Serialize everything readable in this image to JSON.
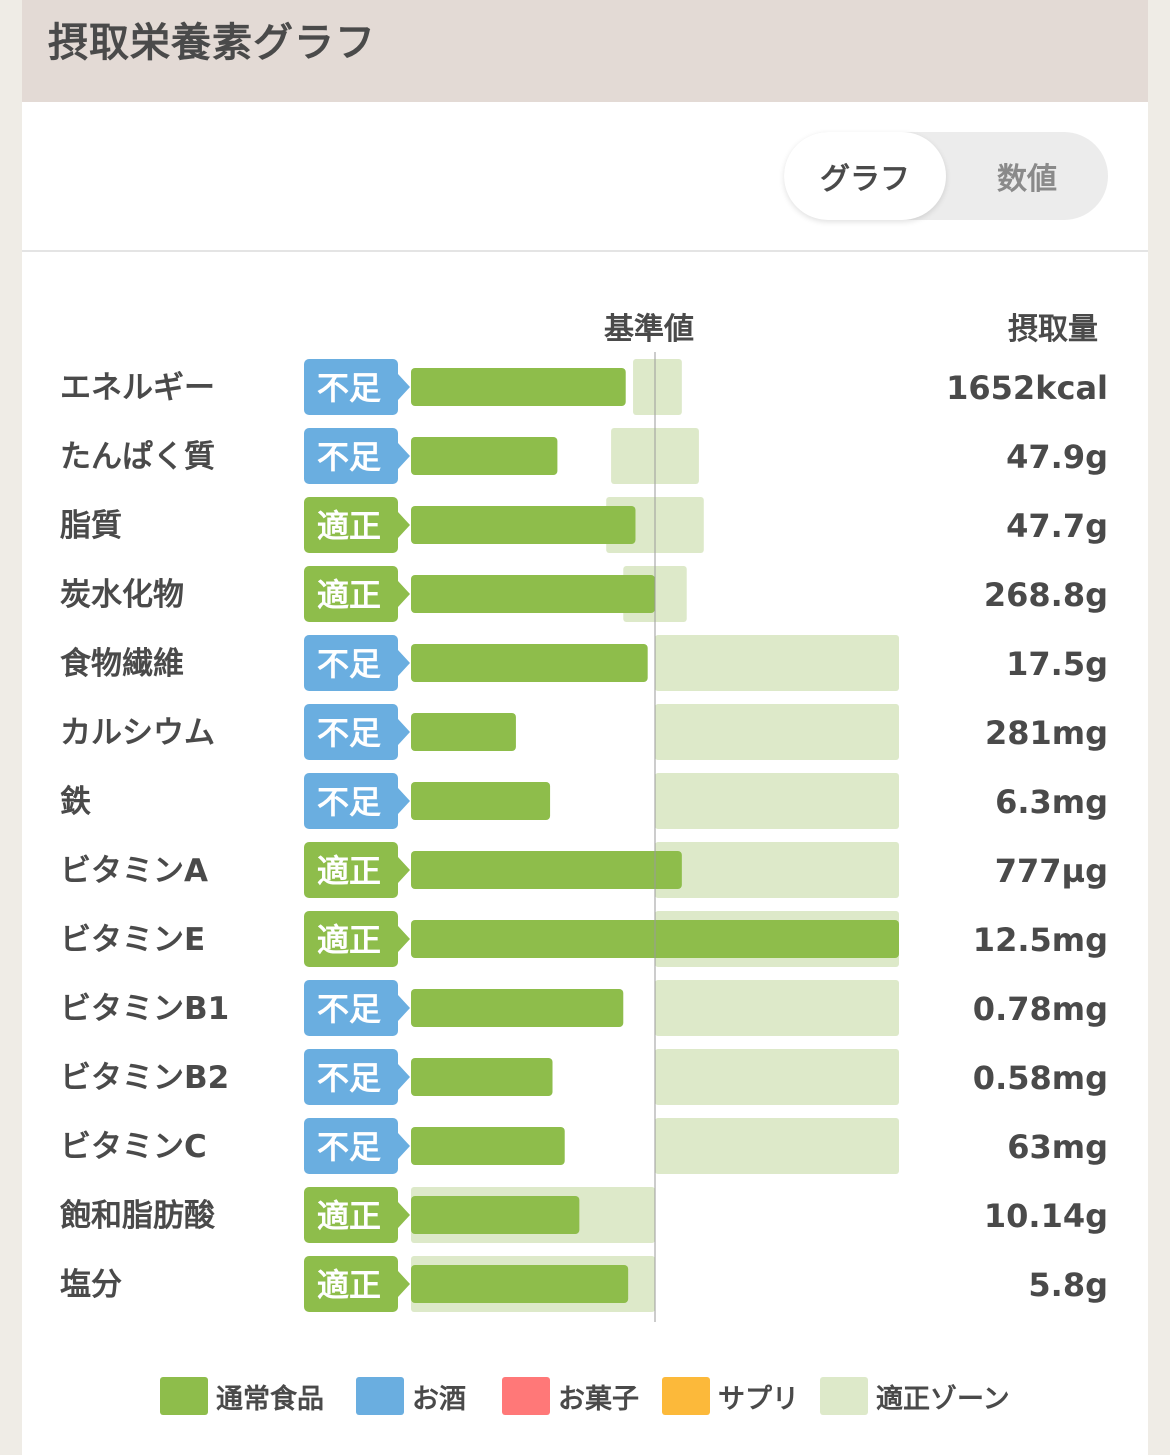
{
  "header": {
    "title": "摂取栄養素グラフ"
  },
  "toggle": {
    "graph_label": "グラフ",
    "number_label": "数値",
    "selected": "graph"
  },
  "columns": {
    "baseline": "基準値",
    "intake": "摂取量"
  },
  "colors": {
    "normal_food": "#8ebd4b",
    "alcohol": "#6aaee0",
    "snack": "#ff7878",
    "supplement": "#fcb93a",
    "proper_zone": "#dde9c9",
    "status_low": "#6aaee0",
    "status_ok": "#8ebd4b",
    "baseline_line": "#9a9a9a"
  },
  "chart_data": {
    "type": "bar",
    "value_unit": "percent_of_baseline",
    "baseline_percent": 100,
    "rows": [
      {
        "name": "エネルギー",
        "status": "不足",
        "percent": 88,
        "zone": [
          91,
          111
        ],
        "intake": "1652kcal"
      },
      {
        "name": "たんぱく質",
        "status": "不足",
        "percent": 60,
        "zone": [
          82,
          118
        ],
        "intake": "47.9g"
      },
      {
        "name": "脂質",
        "status": "適正",
        "percent": 92,
        "zone": [
          80,
          120
        ],
        "intake": "47.7g"
      },
      {
        "name": "炭水化物",
        "status": "適正",
        "percent": 100,
        "zone": [
          87,
          113
        ],
        "intake": "268.8g"
      },
      {
        "name": "食物繊維",
        "status": "不足",
        "percent": 97,
        "zone": [
          100,
          200
        ],
        "intake": "17.5g"
      },
      {
        "name": "カルシウム",
        "status": "不足",
        "percent": 43,
        "zone": [
          100,
          200
        ],
        "intake": "281mg"
      },
      {
        "name": "鉄",
        "status": "不足",
        "percent": 57,
        "zone": [
          100,
          200
        ],
        "intake": "6.3mg"
      },
      {
        "name": "ビタミンA",
        "status": "適正",
        "percent": 111,
        "zone": [
          100,
          200
        ],
        "intake": "777µg"
      },
      {
        "name": "ビタミンE",
        "status": "適正",
        "percent": 200,
        "zone": [
          100,
          200
        ],
        "intake": "12.5mg"
      },
      {
        "name": "ビタミンB1",
        "status": "不足",
        "percent": 87,
        "zone": [
          100,
          200
        ],
        "intake": "0.78mg"
      },
      {
        "name": "ビタミンB2",
        "status": "不足",
        "percent": 58,
        "zone": [
          100,
          200
        ],
        "intake": "0.58mg"
      },
      {
        "name": "ビタミンC",
        "status": "不足",
        "percent": 63,
        "zone": [
          100,
          200
        ],
        "intake": "63mg"
      },
      {
        "name": "飽和脂肪酸",
        "status": "適正",
        "percent": 69,
        "zone": [
          0,
          100
        ],
        "intake": "10.14g"
      },
      {
        "name": "塩分",
        "status": "適正",
        "percent": 89,
        "zone": [
          0,
          100
        ],
        "intake": "5.8g"
      }
    ]
  },
  "legend": [
    {
      "label": "通常食品",
      "color": "#8ebd4b"
    },
    {
      "label": "お酒",
      "color": "#6aaee0"
    },
    {
      "label": "お菓子",
      "color": "#ff7878"
    },
    {
      "label": "サプリ",
      "color": "#fcb93a"
    },
    {
      "label": "適正ゾーン",
      "color": "#dde9c9"
    }
  ]
}
